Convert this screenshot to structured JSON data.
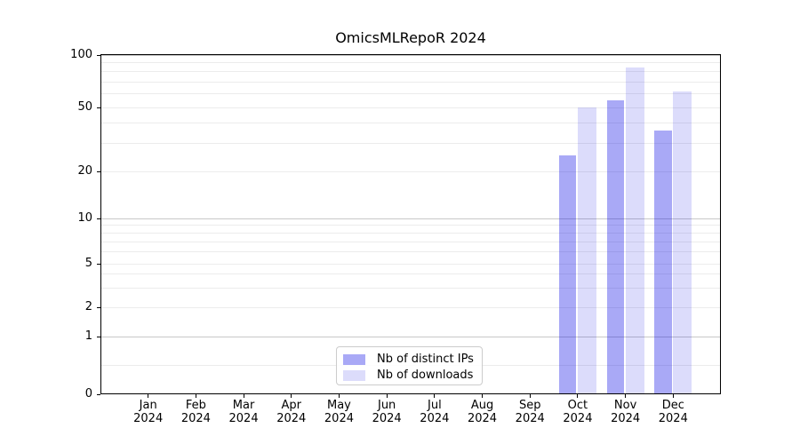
{
  "title": "OmicsMLRepoR 2024",
  "colors": {
    "distinct_ips": "rgba(10,10,230,0.35)",
    "downloads": "rgba(10,10,230,0.14)",
    "grid_major": "#c8c8c8",
    "grid_minor": "#ececec",
    "axis": "#000000"
  },
  "legend": {
    "items": [
      {
        "label": "Nb of distinct IPs",
        "color_key": "distinct_ips"
      },
      {
        "label": "Nb of downloads",
        "color_key": "downloads"
      }
    ]
  },
  "axes": {
    "y": {
      "tick_labels": [
        "0",
        "1",
        "2",
        "5",
        "10",
        "20",
        "50",
        "100"
      ],
      "tick_values": [
        0,
        1,
        2,
        5,
        10,
        20,
        50,
        100
      ],
      "major_grid_values": [
        1,
        10,
        100
      ],
      "minor_grid_values": [
        0.5,
        2,
        3,
        4,
        5,
        6,
        7,
        8,
        9,
        20,
        30,
        40,
        50,
        60,
        70,
        80,
        90
      ]
    },
    "x": {
      "months": [
        "Jan",
        "Feb",
        "Mar",
        "Apr",
        "May",
        "Jun",
        "Jul",
        "Aug",
        "Sep",
        "Oct",
        "Nov",
        "Dec"
      ],
      "year": "2024"
    }
  },
  "chart_data": {
    "type": "bar",
    "title": "OmicsMLRepoR 2024",
    "categories": [
      "Jan 2024",
      "Feb 2024",
      "Mar 2024",
      "Apr 2024",
      "May 2024",
      "Jun 2024",
      "Jul 2024",
      "Aug 2024",
      "Sep 2024",
      "Oct 2024",
      "Nov 2024",
      "Dec 2024"
    ],
    "series": [
      {
        "name": "Nb of distinct IPs",
        "values": [
          null,
          null,
          null,
          null,
          null,
          null,
          null,
          null,
          null,
          25,
          55,
          36
        ]
      },
      {
        "name": "Nb of downloads",
        "values": [
          null,
          null,
          null,
          null,
          null,
          null,
          null,
          null,
          null,
          50,
          85,
          62
        ]
      }
    ],
    "ylim": [
      0,
      100
    ],
    "yscale": "symlog",
    "y_ticks": [
      0,
      1,
      2,
      5,
      10,
      20,
      50,
      100
    ],
    "grid": "horizontal major+minor",
    "legend_position": "lower center"
  }
}
